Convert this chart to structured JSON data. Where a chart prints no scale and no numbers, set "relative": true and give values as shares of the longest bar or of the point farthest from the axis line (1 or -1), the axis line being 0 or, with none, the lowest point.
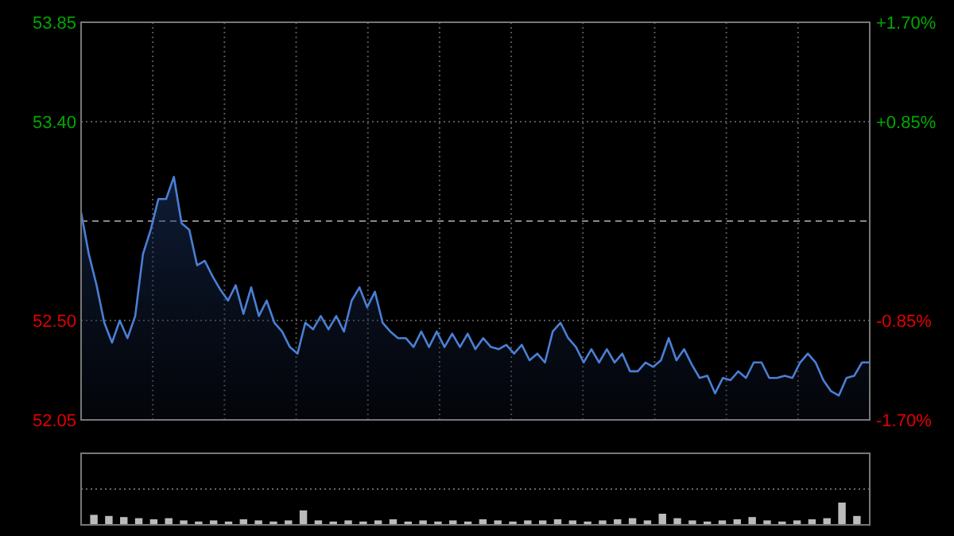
{
  "chart_data": [
    {
      "type": "area",
      "categories": [
        null,
        null,
        null,
        null,
        null,
        null,
        null,
        null,
        null,
        null,
        null,
        null,
        null,
        null,
        null,
        null,
        null,
        null,
        null,
        null,
        null,
        null,
        null,
        null,
        null,
        null,
        null,
        null,
        null,
        null,
        null,
        null,
        null,
        null,
        null,
        null,
        null,
        null,
        null,
        null,
        null,
        null,
        null,
        null,
        null,
        null,
        null,
        null,
        null,
        null,
        null,
        null,
        null,
        null,
        null,
        null,
        null,
        null,
        null,
        null,
        null,
        null,
        null,
        null,
        null,
        null,
        null,
        null,
        null,
        null,
        null,
        null,
        null,
        null,
        null,
        null,
        null,
        null,
        null,
        null,
        null,
        null,
        null,
        null,
        null,
        null,
        null,
        null,
        null,
        null,
        null,
        null,
        null,
        null,
        null,
        null,
        null,
        null,
        null,
        null,
        null,
        null,
        null
      ],
      "series": [
        {
          "color": "#4a7fd4",
          "values": [
            52.99,
            52.8,
            52.66,
            52.49,
            52.4,
            52.5,
            52.42,
            52.52,
            52.8,
            52.91,
            53.05,
            53.05,
            53.15,
            52.94,
            52.91,
            52.75,
            52.77,
            52.7,
            52.64,
            52.59,
            52.66,
            52.53,
            52.65,
            52.52,
            52.59,
            52.49,
            52.45,
            52.38,
            52.35,
            52.49,
            52.46,
            52.52,
            52.46,
            52.52,
            52.45,
            52.59,
            52.65,
            52.56,
            52.63,
            52.49,
            52.45,
            52.42,
            52.42,
            52.38,
            52.45,
            52.38,
            52.45,
            52.38,
            52.44,
            52.38,
            52.44,
            52.37,
            52.42,
            52.38,
            52.37,
            52.39,
            52.35,
            52.39,
            52.32,
            52.35,
            52.31,
            52.45,
            52.49,
            52.42,
            52.38,
            52.31,
            52.37,
            52.31,
            52.37,
            52.31,
            52.35,
            52.27,
            52.27,
            52.31,
            52.29,
            52.32,
            52.42,
            52.32,
            52.37,
            52.3,
            52.24,
            52.25,
            52.17,
            52.24,
            52.23,
            52.27,
            52.24,
            52.31,
            52.31,
            52.24,
            52.24,
            52.25,
            52.24,
            52.31,
            52.35,
            52.31,
            52.23,
            52.18,
            52.16,
            52.24,
            52.25,
            52.31,
            52.31
          ]
        }
      ],
      "ylim": [
        52.05,
        53.85
      ],
      "yticks": [
        52.05,
        {
          "value": 52.5,
          "label": "52.50"
        },
        {
          "value": 53.4,
          "label": "53.40"
        },
        53.85
      ],
      "y2lim": [
        -1.7,
        1.7
      ],
      "y2ticks": [
        {
          "value": -1.7,
          "label": "-1.70%"
        },
        {
          "value": -0.85,
          "label": "-0.85%"
        },
        {
          "value": 0.85,
          "label": "+0.85%"
        },
        {
          "value": 1.7,
          "label": "+1.70%"
        }
      ],
      "ref_lines": [
        {
          "axis": "y",
          "value": 52.95,
          "line_style": "dashed"
        }
      ],
      "grid": true
    },
    {
      "type": "bar",
      "relative": true,
      "categories": [
        null,
        null,
        null,
        null,
        null,
        null,
        null,
        null,
        null,
        null,
        null,
        null,
        null,
        null,
        null,
        null,
        null,
        null,
        null,
        null,
        null,
        null,
        null,
        null,
        null,
        null,
        null,
        null,
        null,
        null,
        null,
        null,
        null,
        null,
        null,
        null,
        null,
        null,
        null,
        null,
        null,
        null,
        null,
        null,
        null,
        null,
        null,
        null,
        null,
        null,
        null,
        null
      ],
      "values": [
        0.45,
        0.4,
        0.35,
        0.3,
        0.25,
        0.3,
        0.2,
        0.15,
        0.2,
        0.15,
        0.25,
        0.2,
        0.15,
        0.2,
        0.65,
        0.2,
        0.15,
        0.2,
        0.15,
        0.2,
        0.25,
        0.15,
        0.2,
        0.15,
        0.2,
        0.15,
        0.25,
        0.2,
        0.15,
        0.2,
        0.2,
        0.25,
        0.2,
        0.15,
        0.2,
        0.25,
        0.3,
        0.2,
        0.5,
        0.3,
        0.2,
        0.15,
        0.2,
        0.25,
        0.35,
        0.2,
        0.15,
        0.2,
        0.25,
        0.3,
        1,
        0.4
      ],
      "color": "#bbbbbb",
      "grid": true
    }
  ]
}
